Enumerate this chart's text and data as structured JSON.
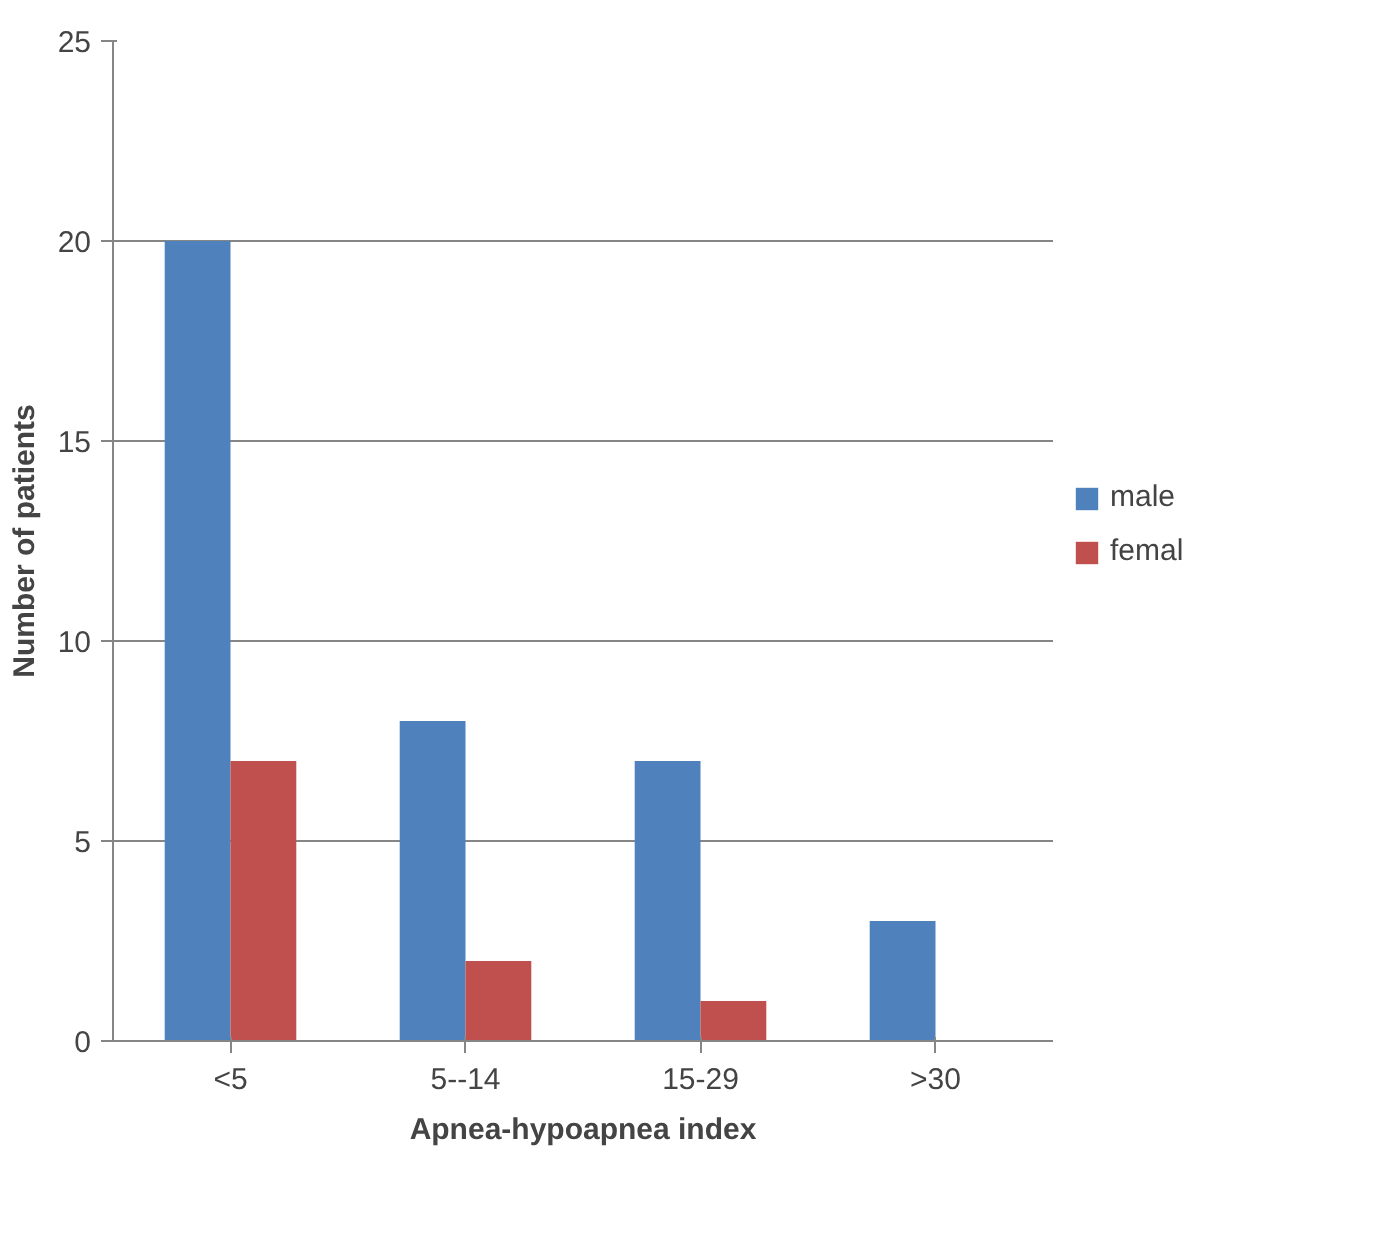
{
  "chart_data": {
    "type": "bar",
    "xlabel": "Apnea-hypoapnea index",
    "ylabel": "Number of patients",
    "categories": [
      "<5",
      "5--14",
      "15-29",
      ">30"
    ],
    "series": [
      {
        "name": "male",
        "color": "#4f81bd",
        "values": [
          20,
          8,
          7,
          3
        ]
      },
      {
        "name": "femal",
        "color": "#c0504d",
        "values": [
          7,
          2,
          1,
          0
        ]
      }
    ],
    "ylim": [
      0,
      25
    ],
    "yticks": [
      0,
      5,
      10,
      15,
      20,
      25
    ],
    "grid": "y",
    "legend": "right"
  }
}
